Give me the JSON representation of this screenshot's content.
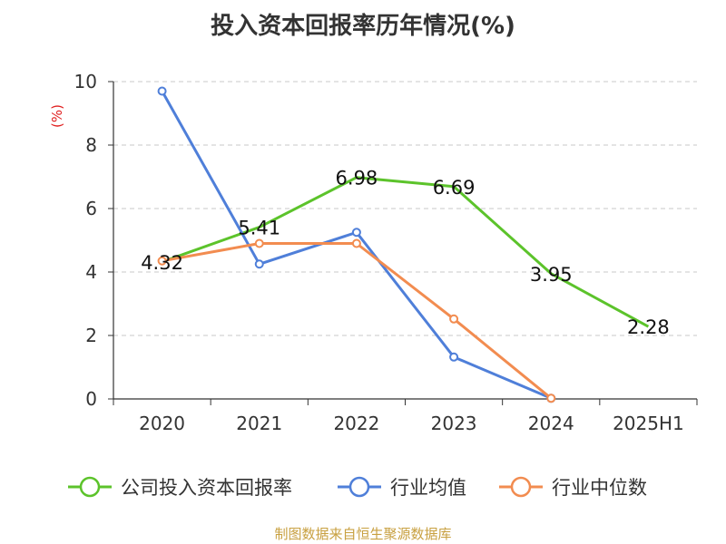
{
  "chart_data": {
    "type": "line",
    "title": "投入资本回报率历年情况(%)",
    "ylabel": "(%)",
    "xlabel": "",
    "categories": [
      "2020",
      "2021",
      "2022",
      "2023",
      "2024",
      "2025H1"
    ],
    "ylim": [
      0,
      10
    ],
    "yticks": [
      0,
      2,
      4,
      6,
      8,
      10
    ],
    "grid": true,
    "legend_position": "bottom",
    "series": [
      {
        "name": "公司投入资本回报率",
        "color": "#5cc32b",
        "values": [
          4.32,
          5.41,
          6.98,
          6.69,
          3.95,
          2.28
        ],
        "labels": [
          "4.32",
          "5.41",
          "6.98",
          "6.69",
          "3.95",
          "2.28"
        ]
      },
      {
        "name": "行业均值",
        "color": "#4f7fd9",
        "values": [
          9.7,
          4.25,
          5.25,
          1.32,
          0.02,
          null
        ]
      },
      {
        "name": "行业中位数",
        "color": "#f28c50",
        "values": [
          4.35,
          4.9,
          4.9,
          2.52,
          0.02,
          null
        ]
      }
    ]
  },
  "source": "制图数据来自恒生聚源数据库"
}
